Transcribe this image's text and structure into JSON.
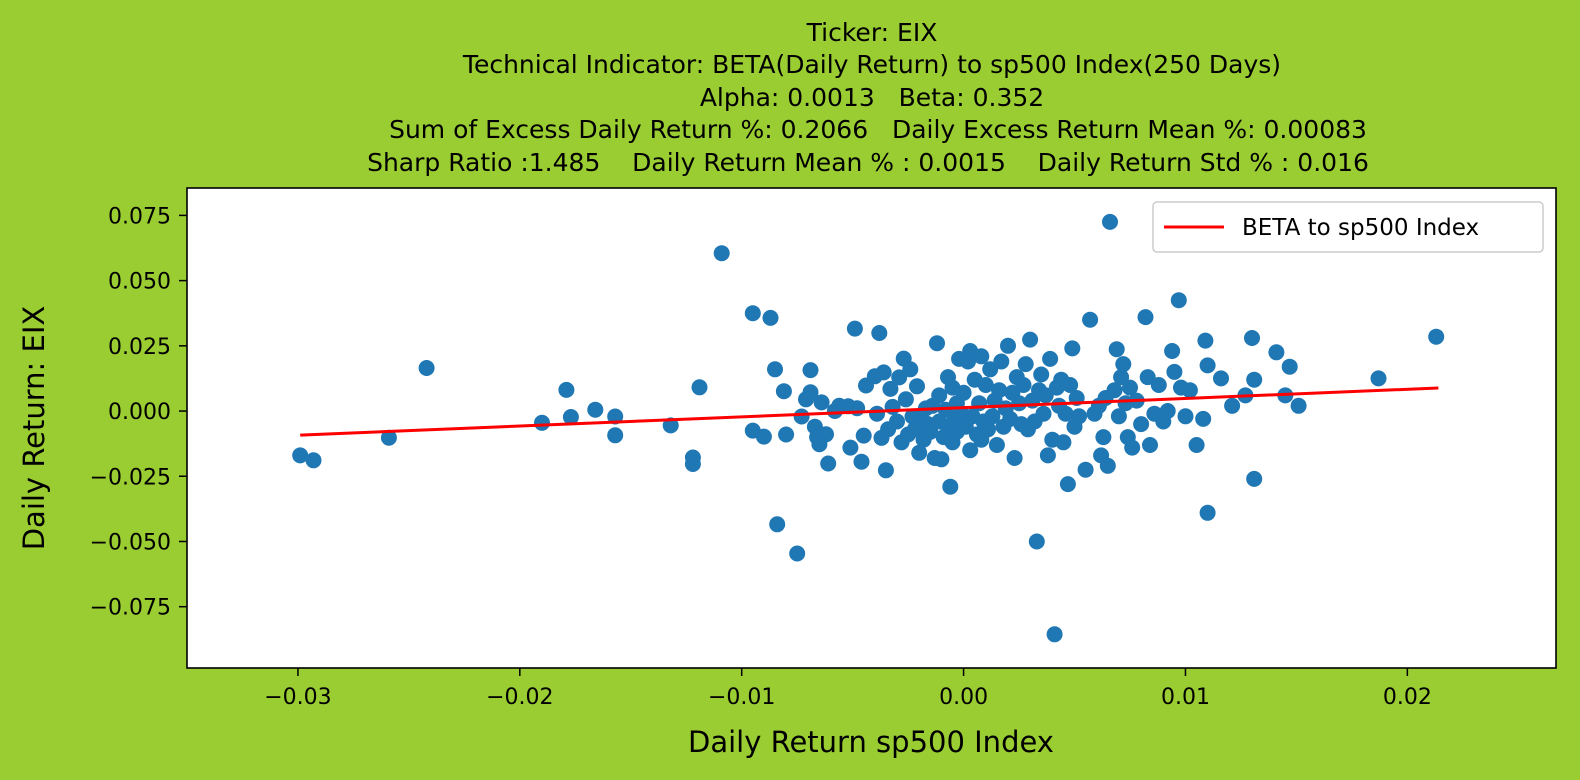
{
  "chart_data": {
    "type": "scatter",
    "title_lines": [
      "Ticker: EIX",
      "Technical Indicator: BETA(Daily Return) to sp500 Index(250 Days)",
      "Alpha: 0.0013   Beta: 0.352",
      "Sum of Excess Daily Return %: 0.2066   Daily Excess Return Mean %: 0.00083",
      "Sharp Ratio :1.485    Daily Return Mean % : 0.0015    Daily Return Std % : 0.016"
    ],
    "xlabel": "Daily Return sp500 Index",
    "ylabel": "Daily Return: EIX",
    "xlim": [
      -0.035,
      0.0267
    ],
    "ylim": [
      -0.0985,
      0.0855
    ],
    "xticks": [
      -0.03,
      -0.02,
      -0.01,
      0.0,
      0.01,
      0.02
    ],
    "xtick_labels": [
      "−0.03",
      "−0.02",
      "−0.01",
      "0.00",
      "0.01",
      "0.02"
    ],
    "yticks": [
      -0.075,
      -0.05,
      -0.025,
      0.0,
      0.025,
      0.05,
      0.075
    ],
    "ytick_labels": [
      "−0.075",
      "−0.050",
      "−0.025",
      "0.000",
      "0.025",
      "0.050",
      "0.075"
    ],
    "legend": {
      "label": "BETA to sp500 Index",
      "placement": "top-right"
    },
    "colors": {
      "points": "#1f77b4",
      "line": "#ff0000",
      "background": "#9acd32",
      "plot_area": "#ffffff"
    },
    "regression_line": {
      "alpha": 0.0013,
      "beta": 0.352,
      "x_range": [
        -0.0299,
        0.0214
      ]
    },
    "points": [
      [
        -0.0299,
        -0.017
      ],
      [
        -0.0293,
        -0.0189
      ],
      [
        -0.0259,
        -0.0102
      ],
      [
        -0.0242,
        0.0165
      ],
      [
        -0.019,
        -0.0045
      ],
      [
        -0.0179,
        0.0081
      ],
      [
        -0.0177,
        -0.0023
      ],
      [
        -0.0166,
        0.0005
      ],
      [
        -0.0157,
        -0.0021
      ],
      [
        -0.0157,
        -0.0093
      ],
      [
        -0.0132,
        -0.0055
      ],
      [
        -0.0122,
        -0.0178
      ],
      [
        -0.0122,
        -0.0203
      ],
      [
        -0.0119,
        0.0091
      ],
      [
        -0.0109,
        0.0605
      ],
      [
        -0.0095,
        0.0375
      ],
      [
        -0.0095,
        -0.0075
      ],
      [
        -0.009,
        -0.0098
      ],
      [
        -0.0087,
        0.0357
      ],
      [
        -0.0085,
        0.016
      ],
      [
        -0.0084,
        -0.0434
      ],
      [
        -0.0081,
        0.0076
      ],
      [
        -0.008,
        -0.009
      ],
      [
        -0.0075,
        -0.0546
      ],
      [
        -0.0073,
        -0.0021
      ],
      [
        -0.0071,
        0.0045
      ],
      [
        -0.0069,
        0.0072
      ],
      [
        -0.0069,
        0.0157
      ],
      [
        -0.0067,
        -0.006
      ],
      [
        -0.0066,
        -0.01
      ],
      [
        -0.0065,
        -0.0127
      ],
      [
        -0.0064,
        0.0033
      ],
      [
        -0.0062,
        -0.0089
      ],
      [
        -0.0061,
        -0.0201
      ],
      [
        -0.0058,
        0.0
      ],
      [
        -0.0056,
        0.002
      ],
      [
        -0.0052,
        0.0018
      ],
      [
        -0.0051,
        -0.014
      ],
      [
        -0.0049,
        0.0316
      ],
      [
        -0.0048,
        0.0011
      ],
      [
        -0.0046,
        -0.0194
      ],
      [
        -0.0045,
        -0.0094
      ],
      [
        -0.0044,
        0.0098
      ],
      [
        -0.004,
        0.0133
      ],
      [
        -0.0039,
        -0.001
      ],
      [
        -0.0038,
        0.0299
      ],
      [
        -0.0037,
        -0.0103
      ],
      [
        -0.0036,
        0.0148
      ],
      [
        -0.0035,
        -0.0227
      ],
      [
        -0.0034,
        -0.007
      ],
      [
        -0.0033,
        0.0085
      ],
      [
        -0.0032,
        0.0016
      ],
      [
        -0.003,
        -0.004
      ],
      [
        -0.0029,
        0.0129
      ],
      [
        -0.0028,
        -0.012
      ],
      [
        -0.0027,
        0.0201
      ],
      [
        -0.0026,
        0.0045
      ],
      [
        -0.0025,
        -0.009
      ],
      [
        -0.0024,
        0.016
      ],
      [
        -0.0023,
        -0.0021
      ],
      [
        -0.0022,
        -0.007
      ],
      [
        -0.0021,
        0.0095
      ],
      [
        -0.002,
        -0.016
      ],
      [
        -0.0019,
        -0.003
      ],
      [
        -0.0018,
        -0.011
      ],
      [
        -0.0017,
        0.001
      ],
      [
        -0.0016,
        -0.005
      ],
      [
        -0.0015,
        -0.008
      ],
      [
        -0.0014,
        0.002
      ],
      [
        -0.0013,
        -0.018
      ],
      [
        -0.0012,
        0.026
      ],
      [
        -0.0011,
        -0.004
      ],
      [
        -0.0011,
        0.006
      ],
      [
        -0.001,
        -0.0185
      ],
      [
        -0.0009,
        -0.01
      ],
      [
        -0.0008,
        0.0005
      ],
      [
        -0.0007,
        -0.006
      ],
      [
        -0.0007,
        0.013
      ],
      [
        -0.0006,
        -0.029
      ],
      [
        -0.0005,
        0.009
      ],
      [
        -0.0005,
        -0.012
      ],
      [
        -0.0004,
        -0.003
      ],
      [
        -0.0003,
        0.003
      ],
      [
        -0.0003,
        -0.008
      ],
      [
        -0.0002,
        0.02
      ],
      [
        -0.0001,
        -0.001
      ],
      [
        0.0,
        0.007
      ],
      [
        0.0001,
        -0.006
      ],
      [
        0.0002,
        0.019
      ],
      [
        0.0003,
        -0.015
      ],
      [
        0.0003,
        0.023
      ],
      [
        0.0004,
        -0.002
      ],
      [
        0.0005,
        0.012
      ],
      [
        0.0006,
        -0.009
      ],
      [
        0.0007,
        0.003
      ],
      [
        0.0008,
        -0.011
      ],
      [
        0.0008,
        0.021
      ],
      [
        0.0009,
        -0.004
      ],
      [
        0.001,
        0.01
      ],
      [
        0.0011,
        -0.007
      ],
      [
        0.0012,
        0.016
      ],
      [
        0.0013,
        -0.002
      ],
      [
        0.0014,
        0.004
      ],
      [
        0.0015,
        -0.013
      ],
      [
        0.0016,
        0.008
      ],
      [
        0.0017,
        0.019
      ],
      [
        0.0018,
        -0.006
      ],
      [
        0.0019,
        0.001
      ],
      [
        0.002,
        0.025
      ],
      [
        0.0021,
        -0.003
      ],
      [
        0.0022,
        0.007
      ],
      [
        0.0023,
        -0.018
      ],
      [
        0.0024,
        0.013
      ],
      [
        0.0025,
        0.003
      ],
      [
        0.0026,
        -0.005
      ],
      [
        0.0027,
        0.01
      ],
      [
        0.0028,
        0.018
      ],
      [
        0.0029,
        -0.007
      ],
      [
        0.003,
        0.0274
      ],
      [
        0.0031,
        0.004
      ],
      [
        0.0032,
        -0.004
      ],
      [
        0.0033,
        -0.05
      ],
      [
        0.0034,
        0.008
      ],
      [
        0.0035,
        0.014
      ],
      [
        0.0036,
        -0.001
      ],
      [
        0.0037,
        0.006
      ],
      [
        0.0038,
        -0.017
      ],
      [
        0.0039,
        0.02
      ],
      [
        0.004,
        -0.011
      ],
      [
        0.0041,
        -0.0856
      ],
      [
        0.0042,
        0.009
      ],
      [
        0.0043,
        0.002
      ],
      [
        0.0044,
        0.012
      ],
      [
        0.0045,
        -0.012
      ],
      [
        0.0046,
        -0.001
      ],
      [
        0.0047,
        -0.028
      ],
      [
        0.0048,
        0.01
      ],
      [
        0.0049,
        0.024
      ],
      [
        0.005,
        -0.006
      ],
      [
        0.0051,
        0.005
      ],
      [
        0.0052,
        -0.002
      ],
      [
        0.0055,
        -0.0225
      ],
      [
        0.0057,
        0.035
      ],
      [
        0.0059,
        -0.001
      ],
      [
        0.0061,
        0.002
      ],
      [
        0.0062,
        -0.017
      ],
      [
        0.0063,
        -0.01
      ],
      [
        0.0064,
        0.005
      ],
      [
        0.0065,
        -0.021
      ],
      [
        0.0066,
        0.0725
      ],
      [
        0.0068,
        0.008
      ],
      [
        0.0069,
        0.0237
      ],
      [
        0.007,
        -0.002
      ],
      [
        0.0071,
        0.013
      ],
      [
        0.0072,
        0.018
      ],
      [
        0.0073,
        0.003
      ],
      [
        0.0074,
        -0.01
      ],
      [
        0.0075,
        0.009
      ],
      [
        0.0076,
        -0.014
      ],
      [
        0.0078,
        0.004
      ],
      [
        0.008,
        -0.005
      ],
      [
        0.0082,
        0.036
      ],
      [
        0.0083,
        0.013
      ],
      [
        0.0084,
        -0.013
      ],
      [
        0.0086,
        -0.001
      ],
      [
        0.0088,
        0.01
      ],
      [
        0.009,
        -0.004
      ],
      [
        0.0092,
        0.0
      ],
      [
        0.0094,
        0.023
      ],
      [
        0.0095,
        0.015
      ],
      [
        0.0097,
        0.0425
      ],
      [
        0.0098,
        0.009
      ],
      [
        0.01,
        -0.002
      ],
      [
        0.0102,
        0.008
      ],
      [
        0.0105,
        -0.013
      ],
      [
        0.0108,
        -0.003
      ],
      [
        0.0109,
        0.027
      ],
      [
        0.011,
        -0.039
      ],
      [
        0.011,
        0.0175
      ],
      [
        0.0116,
        0.0125
      ],
      [
        0.0121,
        0.002
      ],
      [
        0.0127,
        0.006
      ],
      [
        0.013,
        0.028
      ],
      [
        0.0131,
        0.012
      ],
      [
        0.0131,
        -0.026
      ],
      [
        0.0141,
        0.0225
      ],
      [
        0.0145,
        0.006
      ],
      [
        0.0147,
        0.017
      ],
      [
        0.0151,
        0.002
      ],
      [
        0.0187,
        0.0125
      ],
      [
        0.0213,
        0.0285
      ]
    ]
  }
}
